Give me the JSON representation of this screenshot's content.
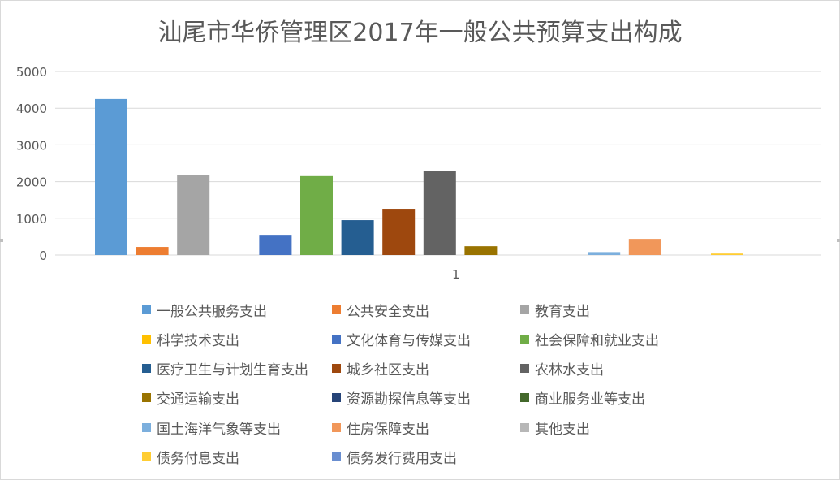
{
  "chart_data": {
    "type": "bar",
    "title": "汕尾市华侨管理区2017年一般公共预算支出构成",
    "categories": [
      "1"
    ],
    "ylim": [
      0,
      5000
    ],
    "yticks": [
      0,
      1000,
      2000,
      3000,
      4000,
      5000
    ],
    "grid": true,
    "legend_position": "bottom",
    "series": [
      {
        "name": "一般公共服务支出",
        "values": [
          4250
        ],
        "color": "#5b9bd5"
      },
      {
        "name": "公共安全支出",
        "values": [
          220
        ],
        "color": "#ed7d31"
      },
      {
        "name": "教育支出",
        "values": [
          2190
        ],
        "color": "#a5a5a5"
      },
      {
        "name": "科学技术支出",
        "values": [
          0
        ],
        "color": "#ffc000"
      },
      {
        "name": "文化体育与传媒支出",
        "values": [
          550
        ],
        "color": "#4472c4"
      },
      {
        "name": "社会保障和就业支出",
        "values": [
          2150
        ],
        "color": "#70ad47"
      },
      {
        "name": "医疗卫生与计划生育支出",
        "values": [
          950
        ],
        "color": "#255e91"
      },
      {
        "name": "城乡社区支出",
        "values": [
          1260
        ],
        "color": "#9e480e"
      },
      {
        "name": "农林水支出",
        "values": [
          2300
        ],
        "color": "#636363"
      },
      {
        "name": "交通运输支出",
        "values": [
          240
        ],
        "color": "#997300"
      },
      {
        "name": "资源勘探信息等支出",
        "values": [
          0
        ],
        "color": "#264478"
      },
      {
        "name": "商业服务业等支出",
        "values": [
          0
        ],
        "color": "#43682b"
      },
      {
        "name": "国土海洋气象等支出",
        "values": [
          80
        ],
        "color": "#7cafdd"
      },
      {
        "name": "住房保障支出",
        "values": [
          440
        ],
        "color": "#f1975a"
      },
      {
        "name": "其他支出",
        "values": [
          0
        ],
        "color": "#b7b7b7"
      },
      {
        "name": "债务付息支出",
        "values": [
          40
        ],
        "color": "#ffcd33"
      },
      {
        "name": "债务发行费用支出",
        "values": [
          0
        ],
        "color": "#698ed0"
      }
    ]
  }
}
